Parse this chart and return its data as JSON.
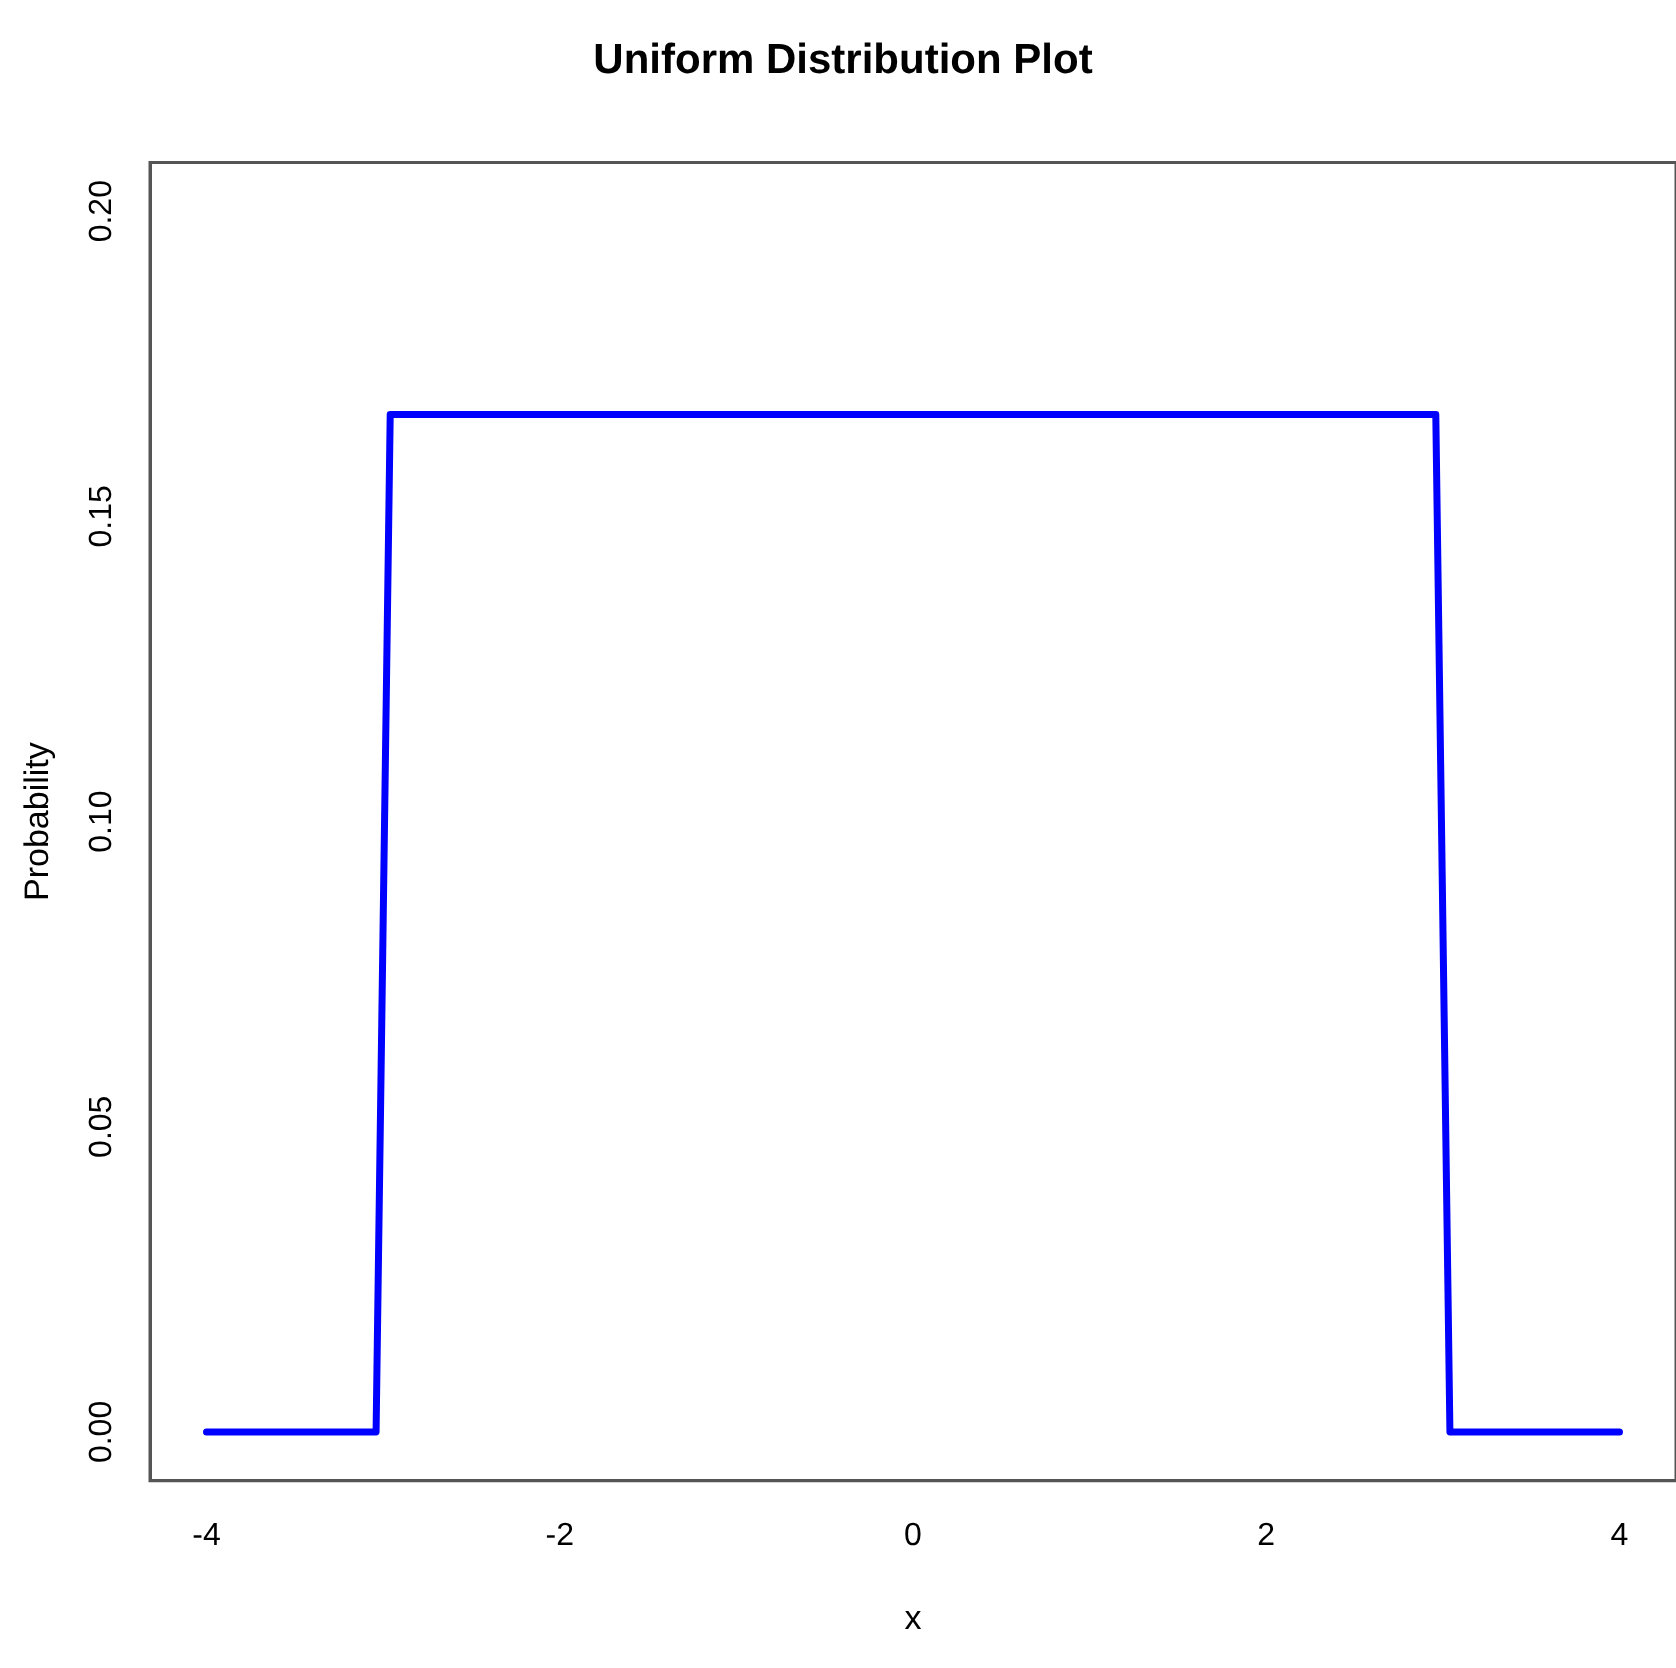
{
  "chart_data": {
    "type": "line",
    "title": "Uniform Distribution Plot",
    "xlabel": "x",
    "ylabel": "Probability",
    "x": [
      -4,
      -3.04,
      -2.96,
      2.96,
      3.04,
      4
    ],
    "series": [
      {
        "color": "#0000ff",
        "values": [
          0,
          0,
          0.1667,
          0.1667,
          0,
          0
        ]
      }
    ],
    "xlim": [
      -4.32,
      4.32
    ],
    "xticks": [
      -4,
      -2,
      0,
      2,
      4
    ],
    "ylim": [
      -0.008,
      0.208
    ],
    "yticks": [
      {
        "value": 0,
        "label": "0.00"
      },
      {
        "value": 0.05,
        "label": "0.05"
      },
      {
        "value": 0.1,
        "label": "0.10"
      },
      {
        "value": 0.15,
        "label": "0.15"
      },
      {
        "value": 0.2,
        "label": "0.20"
      }
    ],
    "grid": false,
    "legend": false,
    "marker": "none",
    "line_style": "solid"
  }
}
